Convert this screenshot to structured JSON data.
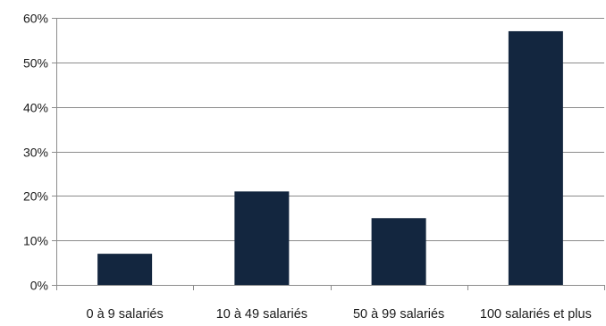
{
  "chart_data": {
    "type": "bar",
    "categories": [
      "0 à 9 salariés",
      "10 à 49 salariés",
      "50 à 99 salariés",
      "100 salariés et plus"
    ],
    "values": [
      7,
      21,
      15,
      57
    ],
    "ylim": [
      0,
      60
    ],
    "yticks": [
      0,
      10,
      20,
      30,
      40,
      50,
      60
    ],
    "y_tick_format": "percent",
    "grid": true,
    "title": "",
    "xlabel": "",
    "ylabel": "",
    "colors": {
      "bar": "#13263f",
      "grid": "#8c8c8c",
      "axis": "#8c8c8c"
    }
  }
}
